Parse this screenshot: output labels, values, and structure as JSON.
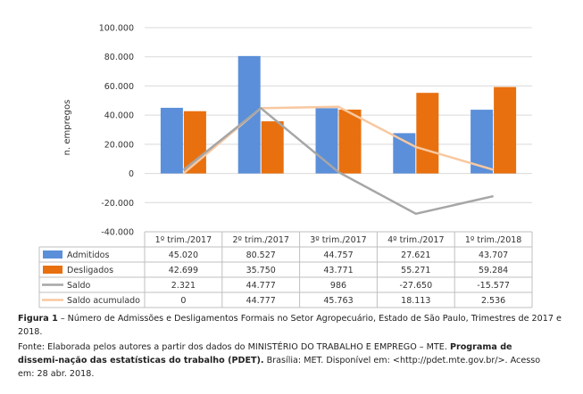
{
  "chart_data": {
    "type": "bar",
    "ylabel": "n. empregos",
    "ylim": [
      -40000,
      100000
    ],
    "yticks": [
      -40000,
      -20000,
      0,
      20000,
      40000,
      60000,
      80000,
      100000
    ],
    "ytick_labels": [
      "-40.000",
      "-20.000",
      "0",
      "20.000",
      "40.000",
      "60.000",
      "80.000",
      "100.000"
    ],
    "grid": true,
    "categories": [
      "1º trim./2017",
      "2º trim./2017",
      "3º trim./2017",
      "4º trim./2017",
      "1º trim./2018"
    ],
    "series": [
      {
        "name": "Admitidos",
        "kind": "bar",
        "color": "#5b8fd9",
        "values": [
          45020,
          80527,
          44757,
          27621,
          43707
        ],
        "labels": [
          "45.020",
          "80.527",
          "44.757",
          "27.621",
          "43.707"
        ]
      },
      {
        "name": "Desligados",
        "kind": "bar",
        "color": "#e8700f",
        "values": [
          42699,
          35750,
          43771,
          55271,
          59284
        ],
        "labels": [
          "42.699",
          "35.750",
          "43.771",
          "55.271",
          "59.284"
        ]
      },
      {
        "name": "Saldo",
        "kind": "line",
        "color": "#a6a6a6",
        "values": [
          2321,
          44777,
          986,
          -27650,
          -15577
        ],
        "labels": [
          "2.321",
          "44.777",
          "986",
          "-27.650",
          "-15.577"
        ]
      },
      {
        "name": "Saldo acumulado",
        "kind": "line",
        "color": "#f8c8a0",
        "values": [
          0,
          44777,
          45763,
          18113,
          2536
        ],
        "labels": [
          "0",
          "44.777",
          "45.763",
          "18.113",
          "2.536"
        ]
      }
    ]
  },
  "caption": {
    "label": "Figura 1",
    "text": " – Número de Admissões e Desligamentos Formais no Setor Agropecuário, Estado de São Paulo, Trimestres de 2017 e 2018."
  },
  "source": {
    "label": "Fonte:",
    "text1": " Elaborada pelos autores a partir dos dados do MINISTÉRIO DO TRABALHO E EMPREGO – MTE. ",
    "bold": "Programa de dissemi-nação das estatísticas do trabalho (PDET).",
    "text2": " Brasília: MET. Disponível em: <http://pdet.mte.gov.br/>. Acesso em: 28 abr. 2018."
  }
}
